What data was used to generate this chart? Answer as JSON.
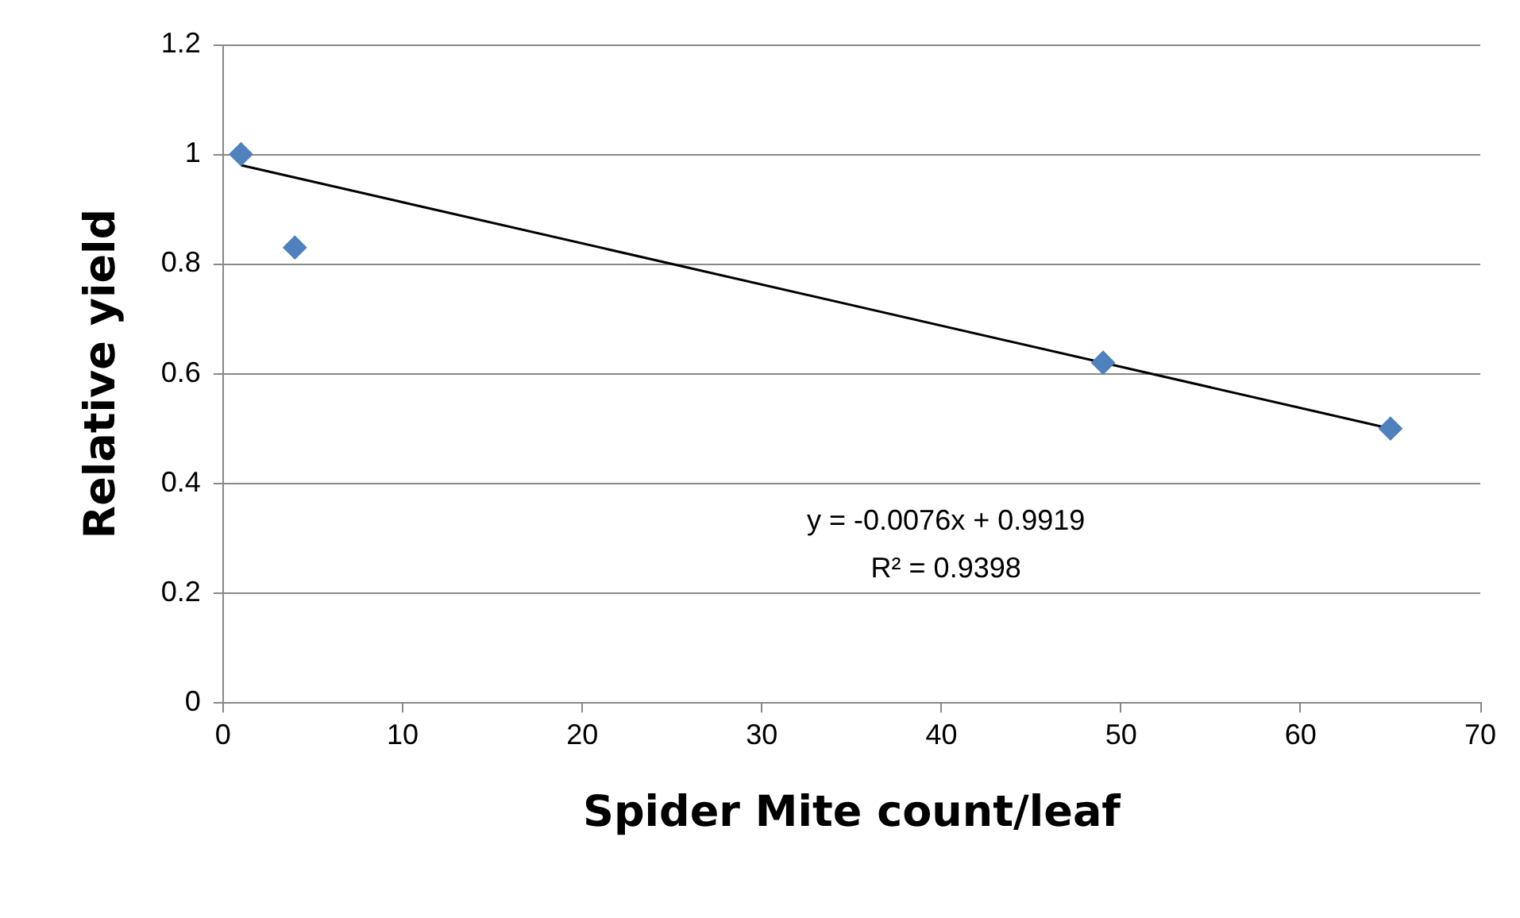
{
  "chart_data": {
    "type": "scatter",
    "xlabel": "Spider Mite count/leaf",
    "ylabel": "Relative yield",
    "xlim": [
      0,
      70
    ],
    "xticks": [
      0,
      10,
      20,
      30,
      40,
      50,
      60,
      70
    ],
    "ylim": [
      0,
      1.2
    ],
    "yticks": [
      0,
      0.2,
      0.4,
      0.6,
      0.8,
      1,
      1.2
    ],
    "grid": "y",
    "legend": false,
    "marker": "diamond",
    "series": [
      {
        "type": "scatter",
        "color": "#4f81bd",
        "x": [
          1,
          4,
          49,
          65
        ],
        "values": [
          1.0,
          0.83,
          0.62,
          0.5
        ]
      },
      {
        "type": "line",
        "color": "#000000",
        "marker": "none",
        "line_style": "solid",
        "x": [
          1,
          65
        ],
        "values": [
          0.98,
          0.5
        ]
      }
    ],
    "annotations": [
      "y = -0.0076x + 0.9919",
      "R² = 0.9398"
    ]
  }
}
